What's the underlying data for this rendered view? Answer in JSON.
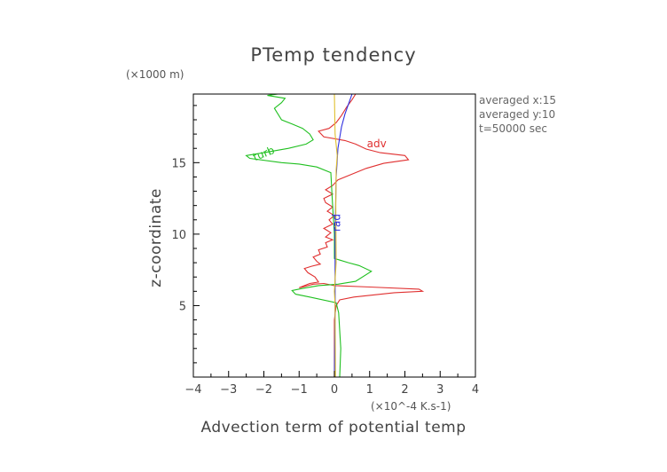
{
  "chart_data": {
    "type": "line",
    "title": "PTemp tendency",
    "xlabel": "Advection term of potential temp",
    "ylabel": "z-coordinate",
    "x_unit_note": "(×10^-4 K.s-1)",
    "y_unit_note": "(×1000 m)",
    "xlim": [
      -4,
      4
    ],
    "ylim": [
      0,
      19.8
    ],
    "x_ticks": [
      -4,
      -3,
      -2,
      -1,
      0,
      1,
      2,
      3,
      4
    ],
    "x_tick_labels": [
      "−4",
      "−3",
      "−2",
      "−1",
      "0",
      "1",
      "2",
      "3",
      "4"
    ],
    "y_ticks": [
      5,
      10,
      15
    ],
    "y_tick_labels": [
      "5",
      "10",
      "15"
    ],
    "annotations": [
      "averaged  x:15",
      "averaged  y:10",
      "t=50000 sec"
    ],
    "series": [
      {
        "name": "adv",
        "label": "adv",
        "color": "#e03030",
        "label_pos": [
          1.2,
          16.3
        ],
        "label_rot": 0,
        "points": [
          [
            0.0,
            0.0
          ],
          [
            0.0,
            4.0
          ],
          [
            0.05,
            5.0
          ],
          [
            0.15,
            5.4
          ],
          [
            0.55,
            5.6
          ],
          [
            1.7,
            5.9
          ],
          [
            2.5,
            6.0
          ],
          [
            2.4,
            6.15
          ],
          [
            1.0,
            6.3
          ],
          [
            0.0,
            6.4
          ],
          [
            -0.3,
            6.55
          ],
          [
            -0.6,
            6.5
          ],
          [
            -0.9,
            6.3
          ],
          [
            -1.0,
            6.25
          ],
          [
            -0.7,
            6.55
          ],
          [
            -0.45,
            6.65
          ],
          [
            -0.55,
            7.0
          ],
          [
            -0.75,
            7.3
          ],
          [
            -0.85,
            7.6
          ],
          [
            -0.65,
            7.75
          ],
          [
            -0.4,
            7.9
          ],
          [
            -0.5,
            8.1
          ],
          [
            -0.6,
            8.4
          ],
          [
            -0.4,
            8.6
          ],
          [
            -0.45,
            8.9
          ],
          [
            -0.2,
            9.1
          ],
          [
            -0.25,
            9.4
          ],
          [
            -0.05,
            9.6
          ],
          [
            -0.25,
            9.8
          ],
          [
            -0.1,
            10.1
          ],
          [
            -0.3,
            10.4
          ],
          [
            -0.05,
            10.7
          ],
          [
            -0.15,
            11.0
          ],
          [
            0.0,
            11.3
          ],
          [
            -0.2,
            11.6
          ],
          [
            -0.05,
            11.9
          ],
          [
            -0.25,
            12.2
          ],
          [
            -0.3,
            12.5
          ],
          [
            -0.05,
            12.8
          ],
          [
            -0.25,
            13.1
          ],
          [
            -0.05,
            13.4
          ],
          [
            0.1,
            13.8
          ],
          [
            0.5,
            14.2
          ],
          [
            0.9,
            14.6
          ],
          [
            1.4,
            14.95
          ],
          [
            2.1,
            15.2
          ],
          [
            2.0,
            15.5
          ],
          [
            1.3,
            15.7
          ],
          [
            0.9,
            15.95
          ],
          [
            0.6,
            16.3
          ],
          [
            0.3,
            16.55
          ],
          [
            -0.3,
            16.8
          ],
          [
            -0.45,
            17.2
          ],
          [
            -0.15,
            17.4
          ],
          [
            0.05,
            17.8
          ],
          [
            0.2,
            18.3
          ],
          [
            0.35,
            18.9
          ],
          [
            0.5,
            19.4
          ],
          [
            0.6,
            19.8
          ]
        ]
      },
      {
        "name": "turb",
        "label": "turb",
        "color": "#20c020",
        "label_pos": [
          -2.0,
          15.6
        ],
        "label_rot": -22,
        "points": [
          [
            0.15,
            0.0
          ],
          [
            0.18,
            2.0
          ],
          [
            0.12,
            4.5
          ],
          [
            0.05,
            5.2
          ],
          [
            -0.7,
            5.6
          ],
          [
            -1.1,
            5.8
          ],
          [
            -1.2,
            6.05
          ],
          [
            -0.9,
            6.2
          ],
          [
            -0.45,
            6.4
          ],
          [
            0.1,
            6.5
          ],
          [
            0.6,
            6.7
          ],
          [
            1.05,
            7.4
          ],
          [
            0.7,
            7.8
          ],
          [
            0.4,
            8.0
          ],
          [
            0.0,
            8.3
          ],
          [
            0.0,
            10.0
          ],
          [
            -0.05,
            12.0
          ],
          [
            -0.1,
            14.3
          ],
          [
            -0.5,
            14.7
          ],
          [
            -1.0,
            14.9
          ],
          [
            -1.5,
            15.0
          ],
          [
            -2.4,
            15.3
          ],
          [
            -2.5,
            15.5
          ],
          [
            -2.0,
            15.7
          ],
          [
            -1.3,
            16.0
          ],
          [
            -0.8,
            16.3
          ],
          [
            -0.6,
            16.6
          ],
          [
            -0.7,
            17.0
          ],
          [
            -0.9,
            17.4
          ],
          [
            -1.2,
            17.7
          ],
          [
            -1.5,
            18.0
          ],
          [
            -1.6,
            18.4
          ],
          [
            -1.7,
            18.8
          ],
          [
            -1.5,
            19.2
          ],
          [
            -1.4,
            19.5
          ],
          [
            -1.9,
            19.7
          ],
          [
            -1.6,
            19.8
          ]
        ]
      },
      {
        "name": "rad",
        "label": "rad",
        "color": "#3030e0",
        "label_pos": [
          0.08,
          10.8
        ],
        "label_rot": -90,
        "points": [
          [
            0.0,
            0.0
          ],
          [
            0.02,
            5.0
          ],
          [
            0.02,
            10.0
          ],
          [
            0.05,
            14.0
          ],
          [
            0.1,
            16.0
          ],
          [
            0.2,
            17.5
          ],
          [
            0.3,
            18.4
          ],
          [
            0.4,
            19.1
          ],
          [
            0.5,
            19.8
          ]
        ]
      },
      {
        "name": "",
        "label": "",
        "color": "#e0c030",
        "label_pos": null,
        "label_rot": 0,
        "points": [
          [
            0.03,
            0.0
          ],
          [
            0.02,
            5.0
          ],
          [
            0.0,
            6.0
          ],
          [
            0.05,
            8.0
          ],
          [
            0.04,
            12.0
          ],
          [
            0.05,
            14.5
          ],
          [
            0.08,
            15.5
          ],
          [
            0.02,
            17.0
          ],
          [
            0.0,
            19.8
          ]
        ]
      }
    ]
  }
}
